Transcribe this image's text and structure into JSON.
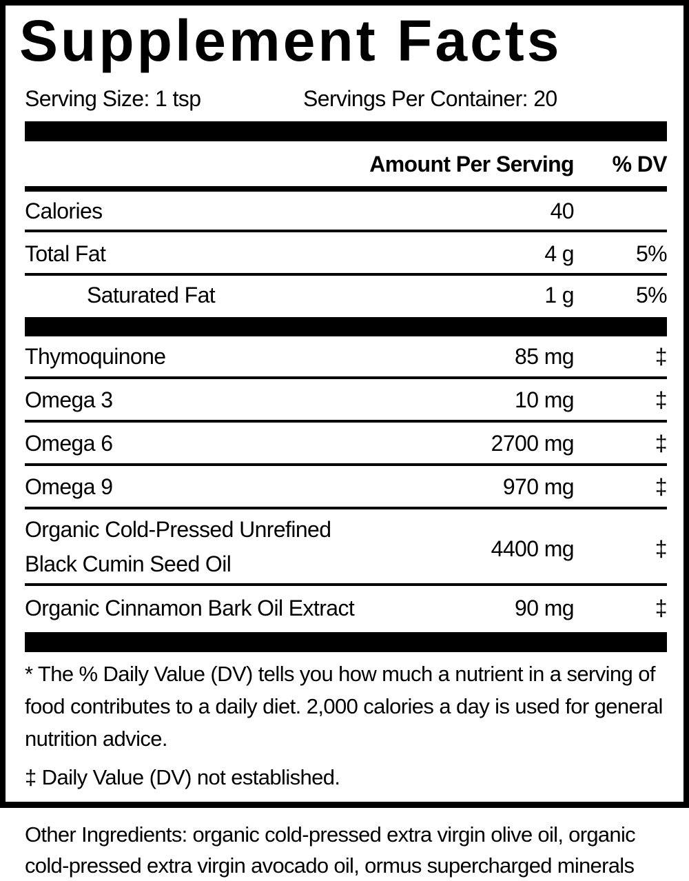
{
  "title": "Supplement Facts",
  "serving_size": "Serving Size: 1 tsp",
  "servings_per_container": "Servings Per Container: 20",
  "header": {
    "amount": "Amount Per Serving",
    "dv": "% DV"
  },
  "nutrients": [
    {
      "name": "Calories",
      "amount": "40",
      "dv": ""
    },
    {
      "name": "Total Fat",
      "amount": "4 g",
      "dv": "5%"
    },
    {
      "name": "Saturated Fat",
      "amount": "1 g",
      "dv": "5%"
    }
  ],
  "ingredients": [
    {
      "name": "Thymoquinone",
      "amount": "85 mg",
      "dv": "‡"
    },
    {
      "name": "Omega 3",
      "amount": "10 mg",
      "dv": "‡"
    },
    {
      "name": "Omega 6",
      "amount": "2700 mg",
      "dv": "‡"
    },
    {
      "name": "Omega 9",
      "amount": "970 mg",
      "dv": "‡"
    },
    {
      "name_line1": "Organic Cold-Pressed Unrefined",
      "name_line2": "Black Cumin Seed Oil",
      "amount": "4400 mg",
      "dv": "‡"
    },
    {
      "name": "Organic Cinnamon Bark Oil Extract",
      "amount": "90 mg",
      "dv": "‡"
    }
  ],
  "footnotes": {
    "dv_note": "* The % Daily Value (DV) tells you how much a nutrient in a serving of food contributes to a daily diet. 2,000 calories a day is used for general nutrition advice.",
    "not_established": "‡ Daily Value (DV) not established."
  },
  "other_ingredients": "Other Ingredients: organic cold-pressed extra virgin olive oil, organic cold-pressed extra virgin avocado oil, ormus supercharged minerals"
}
